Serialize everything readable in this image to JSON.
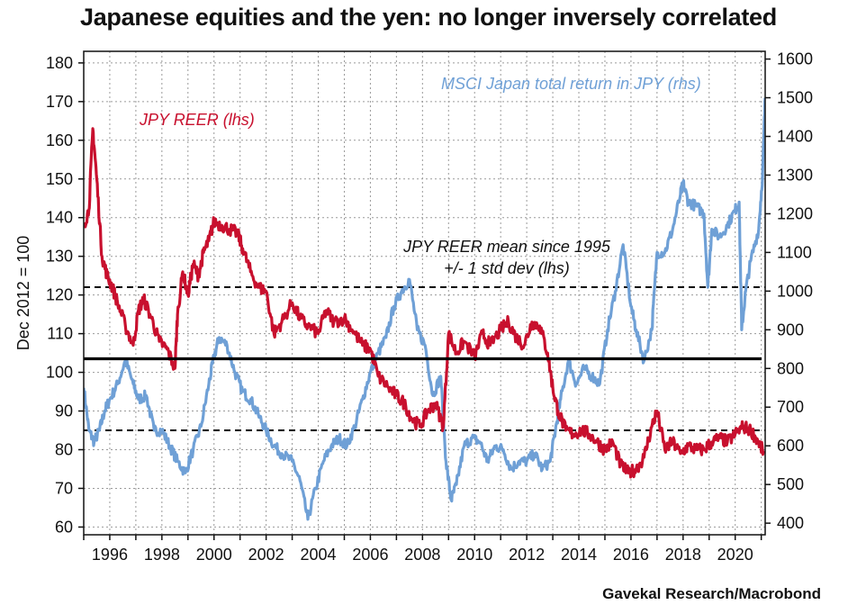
{
  "title": "Japanese equities and the yen: no longer inversely correlated",
  "source": "Gavekal Research/Macrobond",
  "chart_data": {
    "type": "line",
    "title": "Japanese equities and the yen: no longer inversely correlated",
    "ylabel_left": "Dec 2012 = 100",
    "ylim_left": [
      58,
      183
    ],
    "yticks_left": [
      60,
      70,
      80,
      90,
      100,
      110,
      120,
      130,
      140,
      150,
      160,
      170,
      180
    ],
    "ylim_right": [
      370,
      1620
    ],
    "yticks_right": [
      400,
      500,
      600,
      700,
      800,
      900,
      1000,
      1100,
      1200,
      1300,
      1400,
      1500,
      1600
    ],
    "xlim": [
      1995.0,
      2021.15
    ],
    "xticks": [
      "1996",
      "1998",
      "2000",
      "2002",
      "2004",
      "2006",
      "2008",
      "2010",
      "2012",
      "2014",
      "2016",
      "2018",
      "2020"
    ],
    "grid": true,
    "colors": {
      "reer": "#c8102e",
      "msci": "#6fa0d6",
      "mean": "#000000",
      "band": "#000000"
    },
    "series": [
      {
        "name": "JPY REER (lhs)",
        "axis": "left",
        "x": [
          1995.0,
          1995.2,
          1995.35,
          1995.5,
          1995.7,
          1995.9,
          1996.1,
          1996.3,
          1996.6,
          1996.9,
          1997.1,
          1997.3,
          1997.6,
          1997.9,
          1998.2,
          1998.5,
          1998.6,
          1998.8,
          1999.0,
          1999.2,
          1999.4,
          1999.6,
          1999.8,
          2000.0,
          2000.3,
          2000.6,
          2000.9,
          2001.1,
          2001.4,
          2001.7,
          2002.0,
          2002.3,
          2002.6,
          2003.0,
          2003.3,
          2003.6,
          2004.0,
          2004.3,
          2004.6,
          2005.0,
          2005.3,
          2005.7,
          2006.0,
          2006.3,
          2006.7,
          2007.0,
          2007.3,
          2007.6,
          2007.9,
          2008.2,
          2008.5,
          2008.8,
          2009.0,
          2009.3,
          2009.6,
          2010.0,
          2010.3,
          2010.6,
          2011.0,
          2011.3,
          2011.6,
          2011.9,
          2012.2,
          2012.5,
          2012.8,
          2013.0,
          2013.2,
          2013.5,
          2013.8,
          2014.1,
          2014.4,
          2014.7,
          2015.0,
          2015.3,
          2015.6,
          2015.9,
          2016.2,
          2016.5,
          2016.8,
          2017.0,
          2017.3,
          2017.6,
          2017.9,
          2018.2,
          2018.5,
          2018.8,
          2019.1,
          2019.4,
          2019.7,
          2020.0,
          2020.3,
          2020.6,
          2020.9,
          2021.1
        ],
        "values": [
          138,
          142,
          163,
          150,
          130,
          125,
          122,
          118,
          112,
          107,
          116,
          119,
          114,
          108,
          106,
          101,
          115,
          126,
          120,
          128,
          125,
          131,
          134,
          139,
          138,
          137,
          136,
          132,
          126,
          122,
          121,
          110,
          113,
          118,
          114,
          112,
          110,
          116,
          113,
          114,
          111,
          107,
          106,
          99,
          96,
          94,
          92,
          88,
          86,
          90,
          92,
          86,
          110,
          105,
          108,
          104,
          110,
          107,
          111,
          113,
          109,
          107,
          113,
          112,
          105,
          96,
          90,
          85,
          84,
          85,
          84,
          82,
          80,
          82,
          76,
          74,
          75,
          78,
          86,
          90,
          80,
          82,
          79,
          81,
          80,
          80,
          82,
          83,
          82,
          84,
          86,
          85,
          82,
          79
        ]
      },
      {
        "name": "MSCI Japan total return in JPY (rhs)",
        "axis": "right",
        "x": [
          1995.0,
          1995.2,
          1995.4,
          1995.6,
          1995.8,
          1996.0,
          1996.3,
          1996.6,
          1996.9,
          1997.1,
          1997.4,
          1997.7,
          1998.0,
          1998.3,
          1998.6,
          1998.9,
          1999.2,
          1999.5,
          1999.8,
          2000.0,
          2000.2,
          2000.5,
          2000.8,
          2001.1,
          2001.4,
          2001.7,
          2002.0,
          2002.3,
          2002.6,
          2003.0,
          2003.3,
          2003.6,
          2003.9,
          2004.2,
          2004.5,
          2004.8,
          2005.1,
          2005.4,
          2005.7,
          2006.0,
          2006.3,
          2006.6,
          2006.9,
          2007.2,
          2007.5,
          2007.8,
          2008.1,
          2008.4,
          2008.7,
          2008.9,
          2009.1,
          2009.3,
          2009.6,
          2009.9,
          2010.2,
          2010.5,
          2010.8,
          2011.1,
          2011.4,
          2011.7,
          2012.0,
          2012.3,
          2012.6,
          2012.9,
          2013.1,
          2013.3,
          2013.6,
          2013.9,
          2014.2,
          2014.5,
          2014.8,
          2015.1,
          2015.4,
          2015.7,
          2016.0,
          2016.2,
          2016.5,
          2016.8,
          2017.0,
          2017.3,
          2017.6,
          2017.9,
          2018.0,
          2018.2,
          2018.5,
          2018.8,
          2018.95,
          2019.1,
          2019.4,
          2019.7,
          2020.0,
          2020.15,
          2020.25,
          2020.4,
          2020.6,
          2020.9,
          2021.05,
          2021.15
        ],
        "values": [
          750,
          640,
          610,
          640,
          690,
          720,
          760,
          820,
          760,
          720,
          730,
          640,
          640,
          600,
          560,
          530,
          590,
          650,
          760,
          830,
          880,
          860,
          790,
          740,
          720,
          680,
          640,
          600,
          580,
          560,
          510,
          410,
          490,
          560,
          600,
          620,
          600,
          650,
          720,
          790,
          840,
          880,
          960,
          1000,
          1030,
          900,
          860,
          730,
          780,
          560,
          460,
          500,
          600,
          620,
          610,
          560,
          600,
          590,
          540,
          560,
          560,
          580,
          540,
          560,
          640,
          720,
          820,
          760,
          800,
          780,
          760,
          900,
          1000,
          1120,
          960,
          900,
          820,
          900,
          1100,
          1100,
          1160,
          1250,
          1280,
          1230,
          1220,
          1200,
          1010,
          1160,
          1140,
          1170,
          1210,
          1230,
          900,
          1000,
          1080,
          1160,
          1300,
          1500
        ]
      },
      {
        "name": "JPY REER mean since 1995",
        "axis": "left",
        "x": [
          1995.0,
          2021.15
        ],
        "values": [
          103.5,
          103.5
        ]
      },
      {
        "name": "+/- 1 std dev (lhs)",
        "axis": "left",
        "bands": [
          122,
          85
        ]
      }
    ],
    "annotations": [
      "JPY REER (lhs)",
      "MSCI Japan total return in JPY (rhs)",
      "JPY REER mean since 1995",
      "+/- 1 std dev (lhs)"
    ]
  }
}
